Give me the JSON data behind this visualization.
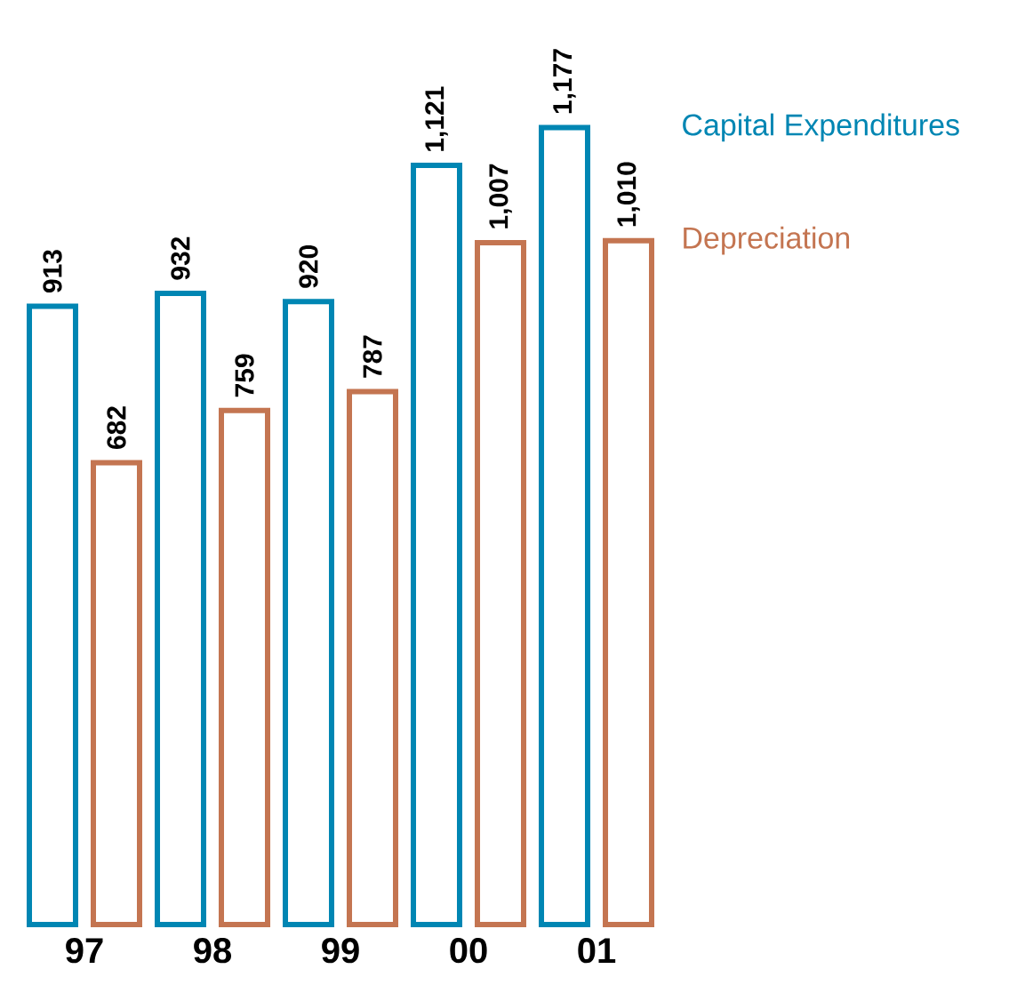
{
  "chart_data": {
    "type": "bar",
    "categories": [
      "97",
      "98",
      "99",
      "00",
      "01"
    ],
    "series": [
      {
        "name": "Capital Expenditures",
        "color": "#0086b3",
        "values": [
          913,
          932,
          920,
          1121,
          1177
        ],
        "value_labels": [
          "913",
          "932",
          "920",
          "1,121",
          "1,177"
        ]
      },
      {
        "name": "Depreciation",
        "color": "#c47551",
        "values": [
          682,
          759,
          787,
          1007,
          1010
        ],
        "value_labels": [
          "682",
          "759",
          "787",
          "1,007",
          "1,010"
        ]
      }
    ]
  }
}
